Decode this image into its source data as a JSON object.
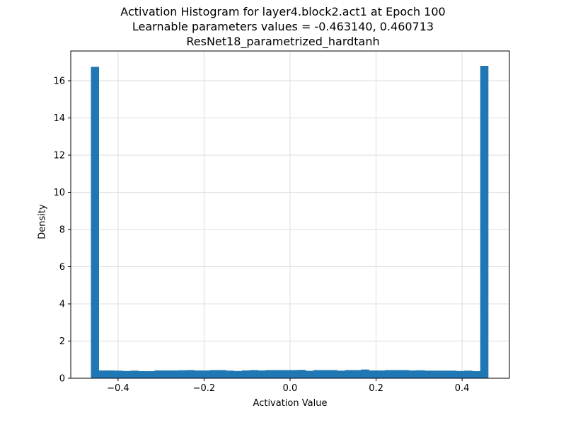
{
  "chart_data": {
    "type": "bar",
    "title_lines": [
      "Activation Histogram for layer4.block2.act1 at Epoch 100",
      "Learnable parameters values = -0.463140, 0.460713",
      "ResNet18_parametrized_hardtanh"
    ],
    "xlabel": "Activation Value",
    "ylabel": "Density",
    "xlim": [
      -0.51,
      0.51
    ],
    "ylim": [
      0,
      17.6
    ],
    "xticks": [
      -0.4,
      -0.2,
      0.0,
      0.2,
      0.4
    ],
    "xtick_labels": [
      "−0.4",
      "−0.2",
      "0.0",
      "0.2",
      "0.4"
    ],
    "yticks": [
      0,
      2,
      4,
      6,
      8,
      10,
      12,
      14,
      16
    ],
    "ytick_labels": [
      "0",
      "2",
      "4",
      "6",
      "8",
      "10",
      "12",
      "14",
      "16"
    ],
    "grid": true,
    "color": "#1f77b4",
    "bin_start": -0.46314,
    "bin_end": 0.460713,
    "values": [
      16.75,
      0.42,
      0.42,
      0.41,
      0.39,
      0.41,
      0.38,
      0.38,
      0.42,
      0.42,
      0.42,
      0.43,
      0.44,
      0.42,
      0.42,
      0.44,
      0.44,
      0.41,
      0.39,
      0.42,
      0.44,
      0.42,
      0.44,
      0.44,
      0.44,
      0.44,
      0.45,
      0.4,
      0.44,
      0.44,
      0.44,
      0.41,
      0.44,
      0.44,
      0.47,
      0.42,
      0.42,
      0.44,
      0.44,
      0.44,
      0.42,
      0.43,
      0.41,
      0.41,
      0.41,
      0.41,
      0.39,
      0.41,
      0.38,
      16.8
    ]
  }
}
